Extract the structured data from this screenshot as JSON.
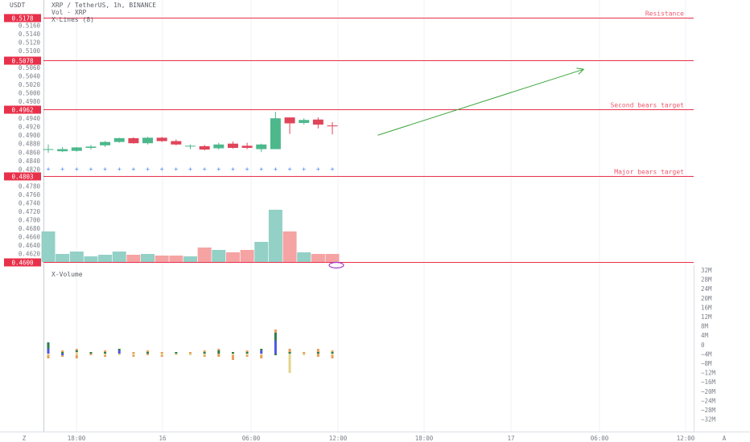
{
  "header": {
    "currency": "USDT",
    "title": "XRP / TetherUS, 1h, BINANCE",
    "subtitle": "Vol · XRP",
    "indicator": "X-Lines (8)"
  },
  "colors": {
    "up": "#4cb88c",
    "down": "#e0455a",
    "vol_up": "#93d0c6",
    "vol_down": "#f5a3a3",
    "level": "#e8304a",
    "level_text": "#ef5a6e",
    "arrow": "#3aa53a",
    "grid": "#eef0f4",
    "axis_text": "#7b7f88",
    "title_text": "#5b5e66",
    "marker": "#3b82f6"
  },
  "y_axis": {
    "ticks": [
      "0.5160",
      "0.5140",
      "0.5120",
      "0.5100",
      "0.5060",
      "0.5040",
      "0.5020",
      "0.5000",
      "0.4980",
      "0.4940",
      "0.4920",
      "0.4900",
      "0.4880",
      "0.4860",
      "0.4840",
      "0.4820",
      "0.4780",
      "0.4760",
      "0.4740",
      "0.4720",
      "0.4700",
      "0.4680",
      "0.4660",
      "0.4640",
      "0.4620"
    ]
  },
  "x_axis": {
    "ticks": [
      {
        "label": "18:00"
      },
      {
        "label": "16"
      },
      {
        "label": "06:00"
      },
      {
        "label": "12:00"
      },
      {
        "label": "18:00"
      },
      {
        "label": "17"
      },
      {
        "label": "06:00"
      },
      {
        "label": "12:00"
      }
    ],
    "left_marker": "Z",
    "right_marker": "A"
  },
  "levels": [
    {
      "price": "0.5178",
      "label": "Resistance"
    },
    {
      "price": "0.5078",
      "label": ""
    },
    {
      "price": "0.4962",
      "label": "Second bears target"
    },
    {
      "price": "0.4803",
      "label": "Major bears target"
    },
    {
      "price": "0.4600",
      "label": ""
    }
  ],
  "xvolume": {
    "label": "X-Volume",
    "ticks": [
      "32M",
      "28M",
      "24M",
      "20M",
      "16M",
      "12M",
      "8M",
      "4M",
      "0",
      "−4M",
      "−8M",
      "−12M",
      "−16M",
      "−20M",
      "−24M",
      "−28M",
      "−32M"
    ]
  },
  "arrow": {
    "from": {
      "bar": 23.2,
      "price": 0.49
    },
    "to": {
      "bar": 37.7,
      "price": 0.5056
    }
  },
  "chart_data": {
    "type": "candlestick",
    "title": "XRP / TetherUS, 1h, BINANCE",
    "ylim": [
      0.4595,
      0.5185
    ],
    "candles": [
      {
        "o": 0.4867,
        "h": 0.4878,
        "l": 0.4858,
        "c": 0.4867,
        "vol": 0.38
      },
      {
        "o": 0.4862,
        "h": 0.4872,
        "l": 0.486,
        "c": 0.4867,
        "vol": 0.1
      },
      {
        "o": 0.4863,
        "h": 0.4872,
        "l": 0.4861,
        "c": 0.4871,
        "vol": 0.13
      },
      {
        "o": 0.487,
        "h": 0.4877,
        "l": 0.4866,
        "c": 0.4873,
        "vol": 0.07
      },
      {
        "o": 0.4876,
        "h": 0.4886,
        "l": 0.4872,
        "c": 0.4884,
        "vol": 0.09
      },
      {
        "o": 0.4884,
        "h": 0.4894,
        "l": 0.4882,
        "c": 0.4893,
        "vol": 0.13
      },
      {
        "o": 0.4893,
        "h": 0.4895,
        "l": 0.488,
        "c": 0.4881,
        "vol": 0.09
      },
      {
        "o": 0.4881,
        "h": 0.4896,
        "l": 0.4878,
        "c": 0.4894,
        "vol": 0.1
      },
      {
        "o": 0.4894,
        "h": 0.4896,
        "l": 0.4884,
        "c": 0.4886,
        "vol": 0.08
      },
      {
        "o": 0.4886,
        "h": 0.489,
        "l": 0.4876,
        "c": 0.4878,
        "vol": 0.08
      },
      {
        "o": 0.4875,
        "h": 0.4878,
        "l": 0.4867,
        "c": 0.4875,
        "vol": 0.07
      },
      {
        "o": 0.4874,
        "h": 0.4877,
        "l": 0.4864,
        "c": 0.4866,
        "vol": 0.18
      },
      {
        "o": 0.4869,
        "h": 0.4882,
        "l": 0.4866,
        "c": 0.4878,
        "vol": 0.15
      },
      {
        "o": 0.488,
        "h": 0.4885,
        "l": 0.4868,
        "c": 0.487,
        "vol": 0.12
      },
      {
        "o": 0.4875,
        "h": 0.4882,
        "l": 0.4867,
        "c": 0.487,
        "vol": 0.15
      },
      {
        "o": 0.4867,
        "h": 0.488,
        "l": 0.486,
        "c": 0.4878,
        "vol": 0.25
      },
      {
        "o": 0.4867,
        "h": 0.4955,
        "l": 0.4867,
        "c": 0.494,
        "vol": 0.65
      },
      {
        "o": 0.4942,
        "h": 0.4942,
        "l": 0.4903,
        "c": 0.4928,
        "vol": 0.38
      },
      {
        "o": 0.4929,
        "h": 0.494,
        "l": 0.4925,
        "c": 0.4936,
        "vol": 0.12
      },
      {
        "o": 0.4937,
        "h": 0.4942,
        "l": 0.4916,
        "c": 0.4925,
        "vol": 0.1
      },
      {
        "o": 0.4923,
        "h": 0.4931,
        "l": 0.4902,
        "c": 0.4921,
        "vol": 0.1
      }
    ],
    "xvolume_m": [
      {
        "pos": [
          0,
          3,
          4,
          0
        ],
        "neg": [
          1,
          0,
          0,
          2
        ]
      },
      {
        "pos": [
          0,
          0,
          1,
          1
        ],
        "neg": [
          0,
          1,
          0,
          1
        ]
      },
      {
        "pos": [
          1,
          0,
          1,
          1
        ],
        "neg": [
          1,
          0,
          0,
          2
        ]
      },
      {
        "pos": [
          0,
          0,
          1,
          0
        ],
        "neg": [
          0,
          0,
          0,
          1
        ]
      },
      {
        "pos": [
          0,
          0,
          1,
          1
        ],
        "neg": [
          1,
          0,
          0,
          1
        ]
      },
      {
        "pos": [
          0,
          2,
          1,
          0
        ],
        "neg": [
          1,
          0,
          0,
          0
        ]
      },
      {
        "pos": [
          0,
          0,
          0,
          1
        ],
        "neg": [
          1,
          0,
          0,
          1
        ]
      },
      {
        "pos": [
          0,
          0,
          1,
          1
        ],
        "neg": [
          0,
          0,
          0,
          1
        ]
      },
      {
        "pos": [
          0,
          0,
          0,
          1
        ],
        "neg": [
          1,
          0,
          0,
          1
        ]
      },
      {
        "pos": [
          0,
          0,
          1,
          0
        ],
        "neg": [
          1,
          0,
          0,
          0
        ]
      },
      {
        "pos": [
          0,
          0,
          0,
          1
        ],
        "neg": [
          1,
          0,
          0,
          0
        ]
      },
      {
        "pos": [
          0,
          0,
          1,
          1
        ],
        "neg": [
          1,
          0,
          0,
          1
        ]
      },
      {
        "pos": [
          0,
          0,
          2,
          1
        ],
        "neg": [
          0,
          0,
          0,
          2
        ]
      },
      {
        "pos": [
          0,
          0,
          1,
          0
        ],
        "neg": [
          1,
          0,
          0,
          3
        ]
      },
      {
        "pos": [
          0,
          0,
          1,
          1
        ],
        "neg": [
          1,
          0,
          0,
          1
        ]
      },
      {
        "pos": [
          0,
          2,
          1,
          0
        ],
        "neg": [
          1,
          0,
          0,
          2
        ]
      },
      {
        "pos": [
          0,
          8,
          5,
          2
        ],
        "neg": [
          0,
          0,
          1,
          0
        ]
      },
      {
        "pos": [
          0,
          0,
          1,
          2
        ],
        "neg": [
          12,
          0,
          0,
          0
        ]
      },
      {
        "pos": [
          0,
          0,
          0,
          1
        ],
        "neg": [
          1,
          0,
          0,
          0
        ]
      },
      {
        "pos": [
          0,
          0,
          1,
          2
        ],
        "neg": [
          0,
          0,
          0,
          2
        ]
      },
      {
        "pos": [
          0,
          0,
          1,
          1
        ],
        "neg": [
          1,
          0,
          0,
          2
        ]
      }
    ],
    "xvolume_colors": [
      "#e2d38a",
      "#4f57e6",
      "#2e7d4f",
      "#e6a05a"
    ]
  }
}
